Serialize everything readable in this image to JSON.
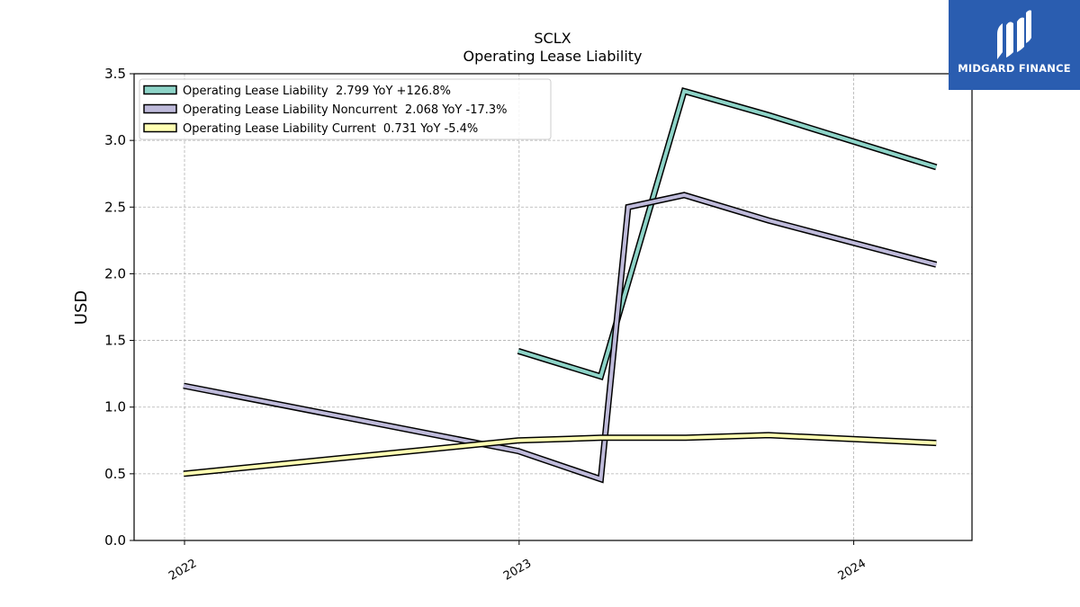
{
  "brand": {
    "name": "MIDGARD FINANCE",
    "logo_icon": "midgard-m-logo-icon",
    "bg_color": "#2a5db0"
  },
  "chart_data": {
    "type": "line",
    "title": "SCLX",
    "subtitle": "Operating Lease Liability",
    "ylabel": "USD",
    "xlabel": "",
    "ylim": [
      0.0,
      3.5
    ],
    "xlim": [
      "2021-11-07",
      "2024-05-09"
    ],
    "y_ticks": [
      "0.0",
      "0.5",
      "1.0",
      "1.5",
      "2.0",
      "2.5",
      "3.0",
      "3.5"
    ],
    "x_ticks": [
      {
        "label": "2022",
        "date": "2022-01-01"
      },
      {
        "label": "2023",
        "date": "2023-01-01"
      },
      {
        "label": "2024",
        "date": "2024-01-01"
      }
    ],
    "grid": true,
    "legend_position": "top-left",
    "series": [
      {
        "name": "Operating Lease Liability  2.799 YoY +126.8%",
        "color": "#8dd3c7",
        "points": [
          {
            "x": "2022-12-31",
            "y": 1.42
          },
          {
            "x": "2023-03-31",
            "y": 1.23
          },
          {
            "x": "2023-06-30",
            "y": 3.37
          },
          {
            "x": "2023-09-30",
            "y": 3.19
          },
          {
            "x": "2024-03-31",
            "y": 2.799
          }
        ]
      },
      {
        "name": "Operating Lease Liability Noncurrent  2.068 YoY -17.3%",
        "color": "#bebada",
        "points": [
          {
            "x": "2021-12-31",
            "y": 1.16
          },
          {
            "x": "2022-12-31",
            "y": 0.67
          },
          {
            "x": "2023-03-31",
            "y": 0.46
          },
          {
            "x": "2023-04-30",
            "y": 2.5
          },
          {
            "x": "2023-06-30",
            "y": 2.59
          },
          {
            "x": "2023-09-30",
            "y": 2.4
          },
          {
            "x": "2024-03-31",
            "y": 2.068
          }
        ]
      },
      {
        "name": "Operating Lease Liability Current  0.731 YoY -5.4%",
        "color": "#ffffb3",
        "points": [
          {
            "x": "2021-12-31",
            "y": 0.5
          },
          {
            "x": "2022-12-31",
            "y": 0.75
          },
          {
            "x": "2023-03-31",
            "y": 0.77
          },
          {
            "x": "2023-06-30",
            "y": 0.77
          },
          {
            "x": "2023-09-30",
            "y": 0.79
          },
          {
            "x": "2024-03-31",
            "y": 0.731
          }
        ]
      }
    ]
  }
}
